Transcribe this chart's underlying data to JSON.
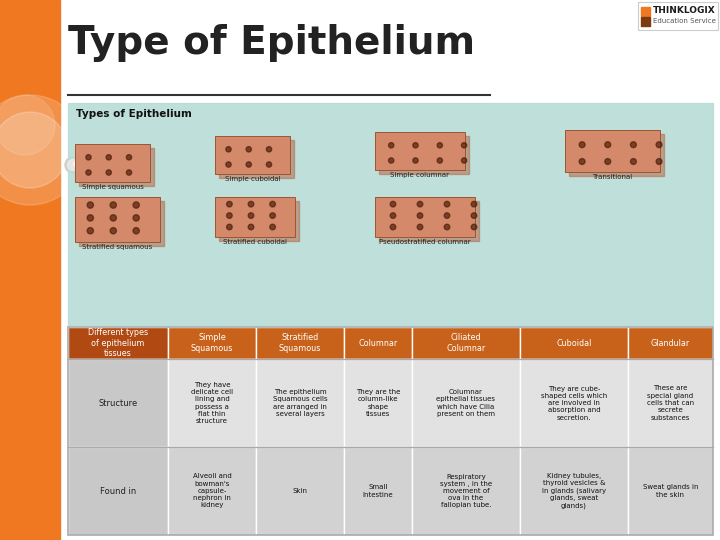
{
  "title": "Type of Epithelium",
  "bg_color": "#ffffff",
  "orange_color": "#F07820",
  "dark_orange": "#C05A1F",
  "table": {
    "col_headers": [
      "Different types\nof epithelium\ntissues",
      "Simple\nSquamous",
      "Stratified\nSquamous",
      "Columnar",
      "Ciliated\nColumnar",
      "Cuboidal",
      "Glandular"
    ],
    "header_bg": "#C8621A",
    "header_text_color": "#ffffff",
    "rows": [
      {
        "label": "Structure",
        "cells": [
          "They have\ndelicate cell\nlining and\npossess a\nflat thin\nstructure",
          "The epithelium\nSquamous cells\nare arranged in\nseveral layers",
          "They are the\ncolumn-like\nshape\ntissues",
          "Columnar\nepithelial tissues\nwhich have Cilia\npresent on them",
          "They are cube-\nshaped cells which\nare involved in\nabsorption and\nsecretion.",
          "These are\nspecial gland\ncells that can\nsecrete\nsubstances"
        ]
      },
      {
        "label": "Found in",
        "cells": [
          "Alveoli and\nbowman's\ncapsule-\nnephron in\nkidney",
          "Skin",
          "Small\nIntestine",
          "Respiratory\nsystem , in the\nmovement of\nova in the\nfallopian tube.",
          "Kidney tubules,\nthyroid vesicles &\nin glands (salivary\nglands, sweat\nglands)",
          "Sweat glands in\nthe skin"
        ]
      }
    ]
  }
}
